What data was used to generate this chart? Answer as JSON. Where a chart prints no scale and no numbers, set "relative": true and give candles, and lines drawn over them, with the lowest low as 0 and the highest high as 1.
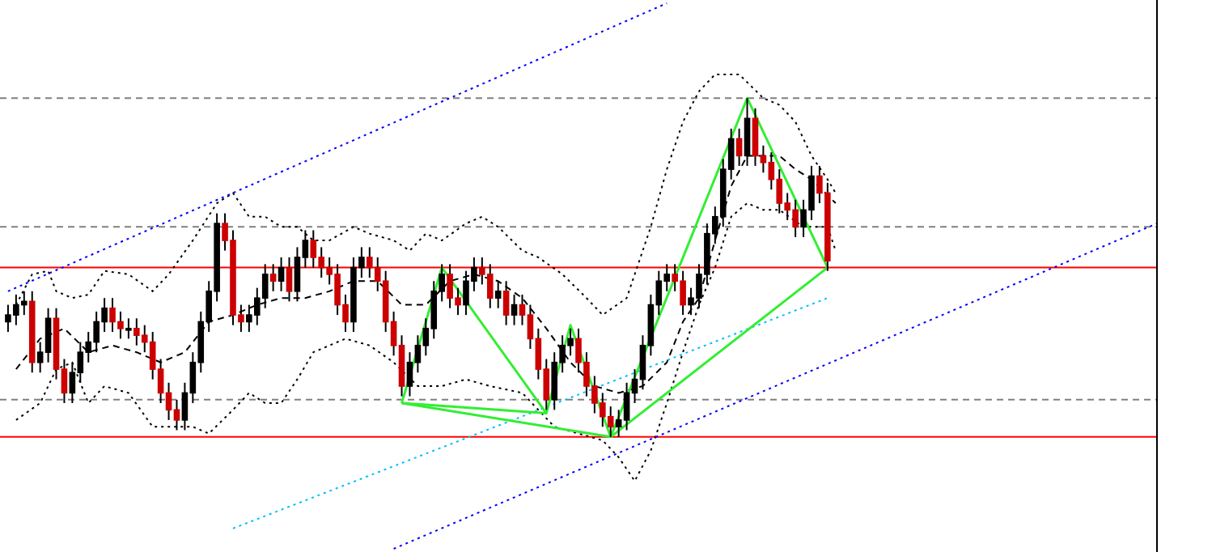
{
  "chart_data": {
    "type": "candlestick",
    "relative": true,
    "color": "#000000",
    "categories": [
      null,
      null,
      null,
      null,
      null,
      null,
      null,
      null,
      null,
      null,
      null,
      null,
      null,
      null,
      null,
      null,
      null,
      null,
      null,
      null,
      null,
      null,
      null,
      null,
      null,
      null,
      null,
      null,
      null,
      null,
      null,
      null,
      null,
      null,
      null,
      null,
      null,
      null,
      null,
      null,
      null,
      null,
      null,
      null,
      null,
      null,
      null,
      null,
      null,
      null,
      null,
      null,
      null,
      null,
      null,
      null,
      null,
      null,
      null,
      null,
      null,
      null,
      null,
      null,
      null,
      null,
      null,
      null,
      null,
      null,
      null,
      null,
      null,
      null,
      null,
      null,
      null,
      null,
      null,
      null,
      null,
      null,
      null,
      null,
      null,
      null,
      null,
      null,
      null,
      null,
      null,
      null,
      null,
      null,
      null,
      null,
      null,
      null,
      null,
      null,
      null,
      null,
      null,
      null,
      null,
      null,
      null,
      null,
      null,
      null,
      null,
      null,
      null,
      null,
      null,
      null,
      null,
      null,
      null,
      null,
      null,
      null,
      null,
      null,
      null,
      null,
      null,
      null,
      null,
      null,
      null,
      null,
      null,
      null,
      null,
      null,
      null,
      null,
      null,
      null,
      null,
      null,
      null,
      null
    ],
    "colors": [
      "#000000",
      "#000000",
      "#000000",
      "#cc0000",
      "#000000",
      "#000000",
      "#cc0000",
      "#cc0000",
      "#000000",
      "#000000",
      "#000000",
      "#000000",
      "#000000",
      "#cc0000",
      "#cc0000",
      "#000000",
      "#cc0000",
      "#cc0000",
      "#cc0000",
      "#cc0000",
      "#cc0000",
      "#cc0000",
      "#000000",
      "#000000",
      "#000000",
      "#000000",
      "#000000",
      "#cc0000",
      "#cc0000",
      "#cc0000",
      "#000000",
      "#000000",
      "#000000",
      "#cc0000",
      "#000000",
      "#cc0000",
      "#000000",
      "#000000",
      "#cc0000",
      "#cc0000",
      "#cc0000",
      "#cc0000",
      "#cc0000",
      "#000000",
      "#000000",
      "#cc0000",
      "#cc0000",
      "#cc0000",
      "#cc0000",
      "#cc0000",
      "#000000",
      "#000000",
      "#000000",
      "#000000",
      "#000000",
      "#cc0000",
      "#cc0000",
      "#000000",
      "#000000",
      "#cc0000",
      "#cc0000",
      "#000000",
      "#cc0000",
      "#000000",
      "#cc0000",
      "#cc0000",
      "#cc0000",
      "#cc0000",
      "#000000",
      "#000000",
      "#000000",
      "#cc0000",
      "#cc0000",
      "#cc0000",
      "#cc0000",
      "#cc0000",
      "#000000",
      "#000000",
      "#000000",
      "#000000",
      "#000000",
      "#000000",
      "#000000",
      "#cc0000",
      "#cc0000",
      "#000000",
      "#000000",
      "#000000",
      "#000000",
      "#000000",
      "#000000",
      "#cc0000",
      "#000000",
      "#cc0000",
      "#cc0000",
      "#cc0000",
      "#cc0000",
      "#cc0000",
      "#cc0000",
      "#000000",
      "#000000",
      "#cc0000",
      "#cc0000",
      null,
      null,
      null,
      null,
      null,
      null,
      null,
      null,
      null,
      null,
      null,
      null,
      null,
      null,
      null,
      null,
      null,
      null,
      null,
      null,
      null,
      null,
      null,
      null,
      null,
      null,
      null,
      null,
      null,
      null,
      null,
      null,
      null,
      null,
      null,
      null,
      null,
      null,
      null,
      null,
      null
    ],
    "ohlc": [
      [
        0.34,
        0.39,
        0.31,
        0.36
      ],
      [
        0.36,
        0.42,
        0.33,
        0.39
      ],
      [
        0.39,
        0.43,
        0.36,
        0.4
      ],
      [
        0.4,
        0.43,
        0.19,
        0.22
      ],
      [
        0.22,
        0.28,
        0.19,
        0.25
      ],
      [
        0.25,
        0.38,
        0.22,
        0.35
      ],
      [
        0.35,
        0.38,
        0.17,
        0.2
      ],
      [
        0.2,
        0.23,
        0.1,
        0.13
      ],
      [
        0.13,
        0.22,
        0.1,
        0.19
      ],
      [
        0.19,
        0.28,
        0.16,
        0.25
      ],
      [
        0.25,
        0.31,
        0.22,
        0.28
      ],
      [
        0.28,
        0.37,
        0.25,
        0.34
      ],
      [
        0.34,
        0.41,
        0.31,
        0.38
      ],
      [
        0.38,
        0.41,
        0.31,
        0.34
      ],
      [
        0.34,
        0.37,
        0.29,
        0.32
      ],
      [
        0.32,
        0.35,
        0.29,
        0.32
      ],
      [
        0.32,
        0.35,
        0.27,
        0.3
      ],
      [
        0.3,
        0.33,
        0.25,
        0.28
      ],
      [
        0.28,
        0.31,
        0.17,
        0.2
      ],
      [
        0.2,
        0.23,
        0.1,
        0.13
      ],
      [
        0.13,
        0.16,
        0.05,
        0.08
      ],
      [
        0.08,
        0.11,
        0.02,
        0.05
      ],
      [
        0.05,
        0.16,
        0.02,
        0.13
      ],
      [
        0.13,
        0.25,
        0.1,
        0.22
      ],
      [
        0.22,
        0.37,
        0.19,
        0.34
      ],
      [
        0.34,
        0.46,
        0.31,
        0.43
      ],
      [
        0.43,
        0.66,
        0.4,
        0.63
      ],
      [
        0.63,
        0.66,
        0.55,
        0.58
      ],
      [
        0.58,
        0.61,
        0.33,
        0.36
      ],
      [
        0.36,
        0.39,
        0.31,
        0.34
      ],
      [
        0.34,
        0.39,
        0.31,
        0.36
      ],
      [
        0.36,
        0.44,
        0.33,
        0.41
      ],
      [
        0.41,
        0.51,
        0.38,
        0.48
      ],
      [
        0.48,
        0.51,
        0.43,
        0.46
      ],
      [
        0.46,
        0.53,
        0.43,
        0.5
      ],
      [
        0.5,
        0.53,
        0.4,
        0.43
      ],
      [
        0.43,
        0.56,
        0.4,
        0.53
      ],
      [
        0.53,
        0.61,
        0.5,
        0.58
      ],
      [
        0.58,
        0.61,
        0.5,
        0.53
      ],
      [
        0.53,
        0.56,
        0.47,
        0.5
      ],
      [
        0.5,
        0.53,
        0.45,
        0.48
      ],
      [
        0.48,
        0.51,
        0.36,
        0.39
      ],
      [
        0.39,
        0.42,
        0.31,
        0.34
      ],
      [
        0.34,
        0.53,
        0.31,
        0.5
      ],
      [
        0.5,
        0.56,
        0.47,
        0.53
      ],
      [
        0.53,
        0.56,
        0.47,
        0.5
      ],
      [
        0.5,
        0.53,
        0.43,
        0.46
      ],
      [
        0.46,
        0.49,
        0.31,
        0.34
      ],
      [
        0.34,
        0.37,
        0.24,
        0.27
      ],
      [
        0.27,
        0.3,
        0.12,
        0.15
      ],
      [
        0.15,
        0.25,
        0.12,
        0.22
      ],
      [
        0.22,
        0.3,
        0.19,
        0.27
      ],
      [
        0.27,
        0.35,
        0.24,
        0.32
      ],
      [
        0.32,
        0.46,
        0.29,
        0.43
      ],
      [
        0.43,
        0.51,
        0.4,
        0.48
      ],
      [
        0.48,
        0.51,
        0.38,
        0.41
      ],
      [
        0.41,
        0.44,
        0.36,
        0.39
      ],
      [
        0.39,
        0.49,
        0.36,
        0.46
      ],
      [
        0.46,
        0.53,
        0.43,
        0.5
      ],
      [
        0.5,
        0.53,
        0.45,
        0.48
      ],
      [
        0.48,
        0.51,
        0.38,
        0.41
      ],
      [
        0.41,
        0.46,
        0.38,
        0.43
      ],
      [
        0.43,
        0.46,
        0.33,
        0.36
      ],
      [
        0.36,
        0.42,
        0.33,
        0.39
      ],
      [
        0.39,
        0.42,
        0.33,
        0.36
      ],
      [
        0.36,
        0.39,
        0.26,
        0.29
      ],
      [
        0.29,
        0.32,
        0.17,
        0.2
      ],
      [
        0.2,
        0.23,
        0.08,
        0.11
      ],
      [
        0.11,
        0.25,
        0.08,
        0.22
      ],
      [
        0.22,
        0.3,
        0.19,
        0.27
      ],
      [
        0.27,
        0.32,
        0.24,
        0.29
      ],
      [
        0.29,
        0.32,
        0.19,
        0.22
      ],
      [
        0.22,
        0.25,
        0.12,
        0.15
      ],
      [
        0.15,
        0.18,
        0.07,
        0.1
      ],
      [
        0.1,
        0.13,
        0.03,
        0.06
      ],
      [
        0.06,
        0.09,
        0.0,
        0.03
      ],
      [
        0.03,
        0.08,
        0.0,
        0.05
      ],
      [
        0.05,
        0.16,
        0.02,
        0.13
      ],
      [
        0.13,
        0.2,
        0.1,
        0.17
      ],
      [
        0.17,
        0.3,
        0.14,
        0.27
      ],
      [
        0.27,
        0.42,
        0.24,
        0.39
      ],
      [
        0.39,
        0.49,
        0.36,
        0.46
      ],
      [
        0.46,
        0.51,
        0.43,
        0.48
      ],
      [
        0.48,
        0.51,
        0.43,
        0.46
      ],
      [
        0.46,
        0.49,
        0.36,
        0.39
      ],
      [
        0.39,
        0.44,
        0.36,
        0.41
      ],
      [
        0.41,
        0.51,
        0.38,
        0.48
      ],
      [
        0.48,
        0.63,
        0.45,
        0.6
      ],
      [
        0.6,
        0.68,
        0.57,
        0.65
      ],
      [
        0.65,
        0.82,
        0.62,
        0.79
      ],
      [
        0.79,
        0.91,
        0.76,
        0.88
      ],
      [
        0.88,
        0.91,
        0.8,
        0.83
      ],
      [
        0.83,
        1.0,
        0.8,
        0.94
      ],
      [
        0.94,
        0.97,
        0.8,
        0.83
      ],
      [
        0.83,
        0.86,
        0.78,
        0.81
      ],
      [
        0.81,
        0.84,
        0.73,
        0.76
      ],
      [
        0.76,
        0.79,
        0.66,
        0.69
      ],
      [
        0.69,
        0.72,
        0.64,
        0.67
      ],
      [
        0.67,
        0.7,
        0.59,
        0.62
      ],
      [
        0.62,
        0.7,
        0.59,
        0.67
      ],
      [
        0.67,
        0.8,
        0.64,
        0.77
      ],
      [
        0.77,
        0.8,
        0.69,
        0.72
      ],
      [
        0.72,
        0.75,
        0.49,
        0.52
      ],
      null,
      null,
      null,
      null,
      null,
      null,
      null,
      null,
      null,
      null,
      null,
      null,
      null,
      null,
      null,
      null,
      null,
      null,
      null,
      null,
      null,
      null,
      null,
      null,
      null,
      null,
      null,
      null,
      null,
      null,
      null,
      null,
      null,
      null,
      null,
      null,
      null,
      null,
      null,
      null,
      null
    ],
    "series": [
      {
        "type": "line",
        "color": "#000000",
        "line_style": "dotted",
        "values": [
          null,
          0.39,
          null,
          0.48,
          null,
          0.49,
          0.43,
          null,
          0.41,
          null,
          0.42,
          null,
          0.49,
          null,
          null,
          0.48,
          null,
          null,
          0.43,
          null,
          0.48,
          null,
          null,
          0.58,
          null,
          null,
          0.69,
          null,
          0.72,
          null,
          0.65,
          null,
          0.65,
          null,
          0.62,
          null,
          0.62,
          null,
          0.58,
          null,
          0.58,
          null,
          null,
          0.62,
          null,
          0.6,
          null,
          null,
          0.58,
          null,
          0.55,
          null,
          0.6,
          null,
          0.58,
          null,
          null,
          0.63,
          null,
          0.65,
          null,
          0.62,
          null,
          null,
          0.55,
          null,
          0.53,
          null,
          null,
          0.48,
          null,
          null,
          0.41,
          null,
          0.36,
          null,
          null,
          0.41,
          null,
          null,
          0.62,
          null,
          0.79,
          null,
          0.93,
          null,
          1.02,
          null,
          1.07,
          null,
          null,
          1.07,
          null,
          null,
          1.0,
          null,
          0.98,
          null,
          0.93,
          null,
          0.83,
          null,
          0.76,
          0.72,
          null,
          null,
          null,
          null,
          null,
          null,
          null,
          null,
          null,
          null,
          null,
          null,
          null,
          null,
          null,
          null,
          null,
          null,
          null,
          null,
          null,
          null,
          null,
          null,
          null,
          null,
          null,
          null,
          null,
          null,
          null,
          null,
          null,
          null,
          null,
          null,
          null,
          null,
          null,
          null
        ]
      },
      {
        "type": "line",
        "color": "#000000",
        "line_style": "dashed",
        "values": [
          null,
          0.2,
          null,
          null,
          0.29,
          null,
          null,
          0.32,
          null,
          null,
          0.25,
          null,
          null,
          0.27,
          null,
          null,
          0.25,
          null,
          null,
          0.22,
          null,
          null,
          0.25,
          null,
          null,
          0.34,
          null,
          null,
          0.36,
          null,
          null,
          0.39,
          null,
          null,
          0.41,
          null,
          null,
          0.41,
          null,
          null,
          0.43,
          null,
          null,
          0.46,
          null,
          null,
          0.46,
          null,
          null,
          0.39,
          null,
          null,
          0.39,
          null,
          null,
          0.46,
          null,
          null,
          0.48,
          null,
          null,
          0.46,
          null,
          null,
          0.41,
          null,
          null,
          0.32,
          null,
          null,
          0.22,
          null,
          null,
          0.15,
          null,
          null,
          0.13,
          null,
          null,
          0.15,
          null,
          null,
          0.22,
          null,
          0.34,
          null,
          0.41,
          null,
          0.58,
          null,
          0.74,
          null,
          0.83,
          null,
          0.83,
          null,
          0.83,
          null,
          0.79,
          null,
          0.76,
          null,
          null,
          0.69,
          null,
          null,
          null,
          null,
          null,
          null,
          null,
          null,
          null,
          null,
          null,
          null,
          null,
          null,
          null,
          null,
          null,
          null,
          null,
          null,
          null,
          null,
          null,
          null,
          null,
          null,
          null,
          null,
          null,
          null,
          null,
          null,
          null,
          null,
          null,
          null,
          null,
          null,
          null,
          null
        ]
      },
      {
        "type": "line",
        "color": "#000000",
        "line_style": "dotted",
        "values": [
          null,
          0.05,
          null,
          null,
          0.1,
          null,
          0.2,
          null,
          0.22,
          null,
          0.1,
          null,
          0.15,
          null,
          null,
          0.13,
          null,
          null,
          0.03,
          null,
          0.03,
          null,
          null,
          0.03,
          null,
          0.01,
          null,
          null,
          0.08,
          null,
          0.13,
          null,
          0.1,
          null,
          0.1,
          null,
          0.17,
          null,
          0.25,
          null,
          0.27,
          null,
          0.29,
          null,
          null,
          0.27,
          null,
          null,
          0.22,
          null,
          null,
          0.15,
          null,
          null,
          0.15,
          null,
          null,
          0.17,
          null,
          null,
          0.15,
          null,
          null,
          null,
          0.13,
          null,
          null,
          null,
          0.03,
          null,
          null,
          0.01,
          null,
          null,
          -0.01,
          null,
          -0.06,
          null,
          -0.13,
          null,
          -0.04,
          null,
          0.1,
          null,
          0.25,
          null,
          0.39,
          null,
          0.5,
          null,
          0.65,
          null,
          0.69,
          null,
          0.67,
          null,
          0.67,
          null,
          null,
          0.62,
          null,
          null,
          0.62,
          0.55,
          null,
          null,
          null,
          null,
          null,
          null,
          null,
          null,
          null,
          null,
          null,
          null,
          null,
          null,
          null,
          null,
          null,
          null,
          null,
          null,
          null,
          null,
          null,
          null,
          null,
          null,
          null,
          null,
          null,
          null,
          null,
          null,
          null,
          null,
          null,
          null,
          null,
          null,
          null,
          null
        ]
      },
      {
        "type": "line",
        "color": "#0000ff",
        "line_style": "dotted",
        "values": [
          0.43,
          null,
          null,
          null,
          null,
          null,
          null,
          null,
          null,
          null,
          null,
          null,
          null,
          null,
          null,
          null,
          null,
          null,
          null,
          null,
          null,
          null,
          null,
          null,
          null,
          null,
          null,
          null,
          null,
          null,
          null,
          null,
          null,
          null,
          null,
          null,
          null,
          null,
          null,
          null,
          null,
          null,
          null,
          null,
          null,
          null,
          null,
          null,
          null,
          null,
          null,
          null,
          null,
          null,
          null,
          null,
          null,
          null,
          null,
          null,
          null,
          null,
          null,
          null,
          null,
          null,
          null,
          null,
          null,
          null,
          null,
          null,
          null,
          null,
          null,
          null,
          null,
          null,
          null,
          null,
          null,
          null,
          1.28,
          null,
          null,
          null,
          null,
          null,
          null,
          null,
          null,
          null,
          null,
          null,
          null,
          null,
          null,
          null,
          null,
          null,
          null,
          null,
          null,
          null,
          null,
          null,
          null,
          null,
          null,
          null,
          null,
          null,
          null,
          null,
          null,
          null,
          null,
          null,
          null,
          null,
          null,
          null,
          null,
          null,
          null,
          null,
          null,
          null,
          null,
          null,
          null,
          null,
          null,
          null,
          null,
          null,
          null,
          null,
          null,
          null,
          null,
          null,
          null,
          null
        ]
      },
      {
        "type": "line",
        "color": "#0000ff",
        "line_style": "dotted",
        "values": [
          null,
          null,
          null,
          null,
          null,
          null,
          null,
          null,
          null,
          null,
          null,
          null,
          null,
          null,
          null,
          null,
          null,
          null,
          null,
          null,
          null,
          null,
          null,
          null,
          null,
          null,
          null,
          null,
          null,
          null,
          null,
          null,
          null,
          null,
          null,
          null,
          null,
          null,
          null,
          null,
          null,
          null,
          null,
          null,
          null,
          null,
          null,
          null,
          -0.33,
          null,
          null,
          null,
          null,
          null,
          null,
          null,
          null,
          null,
          null,
          null,
          null,
          null,
          null,
          null,
          null,
          null,
          null,
          null,
          null,
          null,
          null,
          null,
          null,
          null,
          null,
          null,
          null,
          null,
          null,
          null,
          null,
          null,
          null,
          null,
          null,
          null,
          null,
          null,
          null,
          null,
          null,
          null,
          null,
          null,
          null,
          null,
          null,
          null,
          null,
          null,
          null,
          null,
          null,
          null,
          null,
          null,
          null,
          null,
          null,
          null,
          null,
          null,
          null,
          null,
          null,
          null,
          null,
          null,
          null,
          null,
          null,
          null,
          null,
          null,
          null,
          null,
          null,
          null,
          null,
          null,
          null,
          null,
          null,
          null,
          null,
          null,
          null,
          null,
          null,
          null,
          null,
          null,
          null,
          0.63
        ]
      },
      {
        "type": "line",
        "color": "#00bfff",
        "line_style": "dotted",
        "values": [
          null,
          null,
          null,
          null,
          null,
          null,
          null,
          null,
          null,
          null,
          null,
          null,
          null,
          null,
          null,
          null,
          null,
          null,
          null,
          null,
          null,
          null,
          null,
          null,
          null,
          null,
          null,
          null,
          -0.27,
          null,
          null,
          null,
          null,
          null,
          null,
          null,
          null,
          null,
          null,
          null,
          null,
          null,
          null,
          null,
          null,
          null,
          null,
          null,
          null,
          null,
          null,
          null,
          null,
          null,
          null,
          null,
          null,
          null,
          null,
          null,
          null,
          null,
          null,
          null,
          null,
          null,
          null,
          null,
          null,
          null,
          null,
          null,
          null,
          null,
          null,
          null,
          null,
          null,
          null,
          null,
          null,
          null,
          null,
          null,
          null,
          null,
          null,
          null,
          null,
          null,
          null,
          null,
          null,
          null,
          null,
          null,
          null,
          null,
          null,
          null,
          null,
          null,
          0.41,
          null,
          null,
          null,
          null,
          null,
          null,
          null,
          null,
          null,
          null,
          null,
          null,
          null,
          null,
          null,
          null,
          null,
          null,
          null,
          null,
          null,
          null,
          null,
          null,
          null,
          null,
          null,
          null,
          null,
          null,
          null,
          null,
          null,
          null,
          null,
          null,
          null,
          null,
          null,
          null,
          null
        ]
      },
      {
        "type": "line",
        "color": "#33ee33",
        "line_style": "solid",
        "values": [
          null,
          null,
          null,
          null,
          null,
          null,
          null,
          null,
          null,
          null,
          null,
          null,
          null,
          null,
          null,
          null,
          null,
          null,
          null,
          null,
          null,
          null,
          null,
          null,
          null,
          null,
          null,
          null,
          null,
          null,
          null,
          null,
          null,
          null,
          null,
          null,
          null,
          null,
          null,
          null,
          null,
          null,
          null,
          null,
          null,
          null,
          null,
          null,
          null,
          0.1,
          null,
          null,
          null,
          null,
          0.5,
          null,
          null,
          null,
          null,
          null,
          null,
          null,
          null,
          null,
          null,
          null,
          null,
          0.07,
          null,
          null,
          0.33,
          null,
          null,
          null,
          null,
          0,
          null,
          null,
          null,
          null,
          null,
          null,
          null,
          null,
          null,
          null,
          null,
          null,
          null,
          null,
          null,
          null,
          null,
          null,
          null,
          null,
          null,
          null,
          null,
          null,
          null,
          null,
          null,
          null,
          null,
          null,
          null,
          null,
          null,
          null,
          null,
          null,
          null,
          null,
          null,
          null,
          null,
          null,
          null,
          null,
          null,
          null,
          null,
          null,
          null,
          null,
          null,
          null,
          null,
          null,
          null,
          null,
          null,
          null,
          null,
          null,
          null,
          null,
          null,
          null,
          null,
          null,
          null,
          null
        ]
      },
      {
        "type": "line",
        "color": "#33ee33",
        "line_style": "solid",
        "values": [
          null,
          null,
          null,
          null,
          null,
          null,
          null,
          null,
          null,
          null,
          null,
          null,
          null,
          null,
          null,
          null,
          null,
          null,
          null,
          null,
          null,
          null,
          null,
          null,
          null,
          null,
          null,
          null,
          null,
          null,
          null,
          null,
          null,
          null,
          null,
          null,
          null,
          null,
          null,
          null,
          null,
          null,
          null,
          null,
          null,
          null,
          null,
          null,
          null,
          0.1,
          null,
          null,
          null,
          null,
          null,
          null,
          null,
          null,
          null,
          null,
          null,
          null,
          null,
          null,
          null,
          null,
          null,
          0.07,
          null,
          null,
          null,
          null,
          null,
          null,
          null,
          null,
          null,
          null,
          null,
          null,
          null,
          null,
          null,
          null,
          null,
          null,
          null,
          null,
          null,
          null,
          null,
          null,
          null,
          null,
          null,
          null,
          null,
          null,
          null,
          null,
          null,
          null,
          null,
          null,
          null,
          null,
          null,
          null,
          null,
          null,
          null,
          null,
          null,
          null,
          null,
          null,
          null,
          null,
          null,
          null,
          null,
          null,
          null,
          null,
          null,
          null,
          null,
          null,
          null,
          null,
          null,
          null,
          null,
          null,
          null,
          null,
          null,
          null,
          null,
          null,
          null,
          null,
          null,
          null
        ]
      },
      {
        "type": "line",
        "color": "#33ee33",
        "line_style": "solid",
        "values": [
          null,
          null,
          null,
          null,
          null,
          null,
          null,
          null,
          null,
          null,
          null,
          null,
          null,
          null,
          null,
          null,
          null,
          null,
          null,
          null,
          null,
          null,
          null,
          null,
          null,
          null,
          null,
          null,
          null,
          null,
          null,
          null,
          null,
          null,
          null,
          null,
          null,
          null,
          null,
          null,
          null,
          null,
          null,
          null,
          null,
          null,
          null,
          null,
          null,
          0.1,
          null,
          null,
          null,
          null,
          null,
          null,
          null,
          null,
          null,
          null,
          null,
          null,
          null,
          null,
          null,
          null,
          null,
          null,
          null,
          null,
          null,
          null,
          null,
          null,
          null,
          0,
          null,
          null,
          null,
          null,
          null,
          null,
          null,
          null,
          null,
          null,
          null,
          null,
          null,
          null,
          null,
          null,
          null,
          null,
          null,
          null,
          null,
          null,
          null,
          null,
          null,
          null,
          null,
          null,
          null,
          null,
          null,
          null,
          null,
          null,
          null,
          null,
          null,
          null,
          null,
          null,
          null,
          null,
          null,
          null,
          null,
          null,
          null,
          null,
          null,
          null,
          null,
          null,
          null,
          null,
          null,
          null,
          null,
          null,
          null,
          null,
          null,
          null,
          null,
          null,
          null,
          null,
          null,
          null
        ]
      },
      {
        "type": "line",
        "color": "#33ee33",
        "line_style": "solid",
        "values": [
          null,
          null,
          null,
          null,
          null,
          null,
          null,
          null,
          null,
          null,
          null,
          null,
          null,
          null,
          null,
          null,
          null,
          null,
          null,
          null,
          null,
          null,
          null,
          null,
          null,
          null,
          null,
          null,
          null,
          null,
          null,
          null,
          null,
          null,
          null,
          null,
          null,
          null,
          null,
          null,
          null,
          null,
          null,
          null,
          null,
          null,
          null,
          null,
          null,
          null,
          null,
          null,
          null,
          null,
          null,
          null,
          null,
          null,
          null,
          null,
          null,
          null,
          null,
          null,
          null,
          null,
          null,
          null,
          null,
          null,
          null,
          null,
          null,
          null,
          null,
          0,
          null,
          null,
          null,
          null,
          null,
          null,
          null,
          null,
          null,
          null,
          null,
          null,
          null,
          null,
          null,
          null,
          1.0,
          null,
          null,
          null,
          null,
          null,
          null,
          null,
          null,
          null,
          0.5,
          null,
          null,
          null,
          null,
          null,
          null,
          null,
          null,
          null,
          null,
          null,
          null,
          null,
          null,
          null,
          null,
          null,
          null,
          null,
          null,
          null,
          null,
          null,
          null,
          null,
          null,
          null,
          null,
          null,
          null,
          null,
          null,
          null,
          null,
          null,
          null,
          null,
          null,
          null,
          null,
          null
        ]
      },
      {
        "type": "line",
        "color": "#33ee33",
        "line_style": "solid",
        "values": [
          null,
          null,
          null,
          null,
          null,
          null,
          null,
          null,
          null,
          null,
          null,
          null,
          null,
          null,
          null,
          null,
          null,
          null,
          null,
          null,
          null,
          null,
          null,
          null,
          null,
          null,
          null,
          null,
          null,
          null,
          null,
          null,
          null,
          null,
          null,
          null,
          null,
          null,
          null,
          null,
          null,
          null,
          null,
          null,
          null,
          null,
          null,
          null,
          null,
          null,
          null,
          null,
          null,
          null,
          null,
          null,
          null,
          null,
          null,
          null,
          null,
          null,
          null,
          null,
          null,
          null,
          null,
          null,
          null,
          null,
          null,
          null,
          null,
          null,
          null,
          0,
          null,
          null,
          null,
          null,
          null,
          null,
          null,
          null,
          null,
          null,
          null,
          null,
          null,
          null,
          null,
          null,
          null,
          null,
          null,
          null,
          null,
          null,
          null,
          null,
          null,
          null,
          0.5,
          null,
          null,
          null,
          null,
          null,
          null,
          null,
          null,
          null,
          null,
          null,
          null,
          null,
          null,
          null,
          null,
          null,
          null,
          null,
          null,
          null,
          null,
          null,
          null,
          null,
          null,
          null,
          null,
          null,
          null,
          null,
          null,
          null,
          null,
          null,
          null,
          null,
          null,
          null,
          null,
          null
        ]
      }
    ],
    "ref_lines": [
      {
        "axis": "y",
        "value": 1.0,
        "color": "#808080",
        "line_style": "dashed"
      },
      {
        "axis": "y",
        "value": 0.62,
        "color": "#808080",
        "line_style": "dashed"
      },
      {
        "axis": "y",
        "value": 0.11,
        "color": "#808080",
        "line_style": "dashed"
      },
      {
        "axis": "y",
        "value": 0.5,
        "color": "#ff0000",
        "line_style": "solid"
      },
      {
        "axis": "y",
        "value": 0,
        "color": "#ff0000",
        "line_style": "solid"
      }
    ]
  }
}
